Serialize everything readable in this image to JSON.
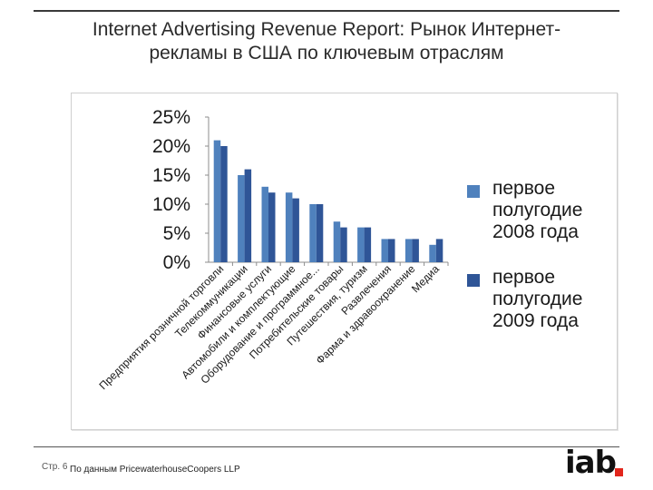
{
  "slide": {
    "title_line1": "Internet Advertising Revenue Report: Рынок Интернет-",
    "title_line2": "рекламы в США по ключевым отраслям",
    "page_label": "Стр. 6",
    "source": "По данным PricewaterhouseCoopers LLP",
    "logo_text": "iab",
    "logo_dot_color": "#e2261c"
  },
  "legend": {
    "items": [
      {
        "lines": [
          "первое",
          "полугодие",
          "2008 года"
        ],
        "color": "#4f81bd"
      },
      {
        "lines": [
          "первое",
          "полугодие",
          "2009 года"
        ],
        "color": "#2f5597"
      }
    ]
  },
  "chart_data": {
    "type": "bar",
    "categories": [
      "Предприятия розничной торговли",
      "Телекоммуникации",
      "Финансовые услуги",
      "Автомобили и комплектующие",
      "Оборудование и программное...",
      "Потребительские товары",
      "Путешествия, туризм",
      "Развлечения",
      "Фарма и здравоохранение",
      "Медиа"
    ],
    "series": [
      {
        "name": "первое полугодие 2008 года",
        "values": [
          21,
          15,
          13,
          12,
          10,
          7,
          6,
          4,
          4,
          3
        ],
        "color": "#4f81bd"
      },
      {
        "name": "первое полугодие 2009 года",
        "values": [
          20,
          16,
          12,
          11,
          10,
          6,
          6,
          4,
          4,
          4
        ],
        "color": "#2f5597"
      }
    ],
    "y_ticks": [
      "0%",
      "5%",
      "10%",
      "15%",
      "20%",
      "25%"
    ],
    "ylim": [
      0,
      25
    ],
    "y_unit": "%",
    "grid": false,
    "legend_position": "right"
  }
}
